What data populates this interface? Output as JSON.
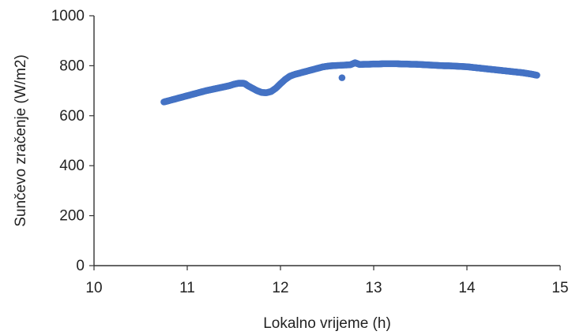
{
  "chart_data": {
    "type": "scatter",
    "title": "",
    "xlabel": "Lokalno vrijeme (h)",
    "ylabel": "Sunčevo zračenje (W/m2)",
    "xlim": [
      10,
      15
    ],
    "ylim": [
      0,
      1000
    ],
    "xticks": [
      "10",
      "11",
      "12",
      "13",
      "14",
      "15"
    ],
    "yticks": [
      "0",
      "200",
      "400",
      "600",
      "800",
      "1000"
    ],
    "grid": false,
    "legend": "none",
    "series": [
      {
        "color": "#4472C4",
        "points": [
          [
            10.75,
            655
          ],
          [
            10.8,
            660
          ],
          [
            10.85,
            665
          ],
          [
            10.9,
            670
          ],
          [
            10.95,
            675
          ],
          [
            11.0,
            680
          ],
          [
            11.05,
            685
          ],
          [
            11.1,
            690
          ],
          [
            11.15,
            695
          ],
          [
            11.2,
            700
          ],
          [
            11.25,
            704
          ],
          [
            11.3,
            708
          ],
          [
            11.35,
            712
          ],
          [
            11.4,
            716
          ],
          [
            11.45,
            720
          ],
          [
            11.5,
            726
          ],
          [
            11.55,
            730
          ],
          [
            11.6,
            730
          ],
          [
            11.62,
            728
          ],
          [
            11.65,
            720
          ],
          [
            11.7,
            710
          ],
          [
            11.75,
            700
          ],
          [
            11.8,
            693
          ],
          [
            11.85,
            692
          ],
          [
            11.9,
            697
          ],
          [
            11.95,
            710
          ],
          [
            12.0,
            728
          ],
          [
            12.05,
            745
          ],
          [
            12.1,
            758
          ],
          [
            12.15,
            765
          ],
          [
            12.2,
            770
          ],
          [
            12.25,
            775
          ],
          [
            12.3,
            780
          ],
          [
            12.35,
            785
          ],
          [
            12.4,
            790
          ],
          [
            12.45,
            795
          ],
          [
            12.5,
            798
          ],
          [
            12.55,
            800
          ],
          [
            12.6,
            801
          ],
          [
            12.65,
            802
          ],
          [
            12.66,
            752
          ],
          [
            12.7,
            803
          ],
          [
            12.75,
            804
          ],
          [
            12.8,
            812
          ],
          [
            12.85,
            805
          ],
          [
            12.9,
            806
          ],
          [
            12.95,
            806
          ],
          [
            13.0,
            807
          ],
          [
            13.05,
            807
          ],
          [
            13.1,
            808
          ],
          [
            13.15,
            808
          ],
          [
            13.2,
            808
          ],
          [
            13.25,
            808
          ],
          [
            13.3,
            807
          ],
          [
            13.35,
            807
          ],
          [
            13.4,
            806
          ],
          [
            13.45,
            806
          ],
          [
            13.5,
            805
          ],
          [
            13.55,
            804
          ],
          [
            13.6,
            803
          ],
          [
            13.65,
            802
          ],
          [
            13.7,
            801
          ],
          [
            13.75,
            800
          ],
          [
            13.8,
            800
          ],
          [
            13.85,
            799
          ],
          [
            13.9,
            798
          ],
          [
            13.95,
            797
          ],
          [
            14.0,
            796
          ],
          [
            14.05,
            794
          ],
          [
            14.1,
            792
          ],
          [
            14.15,
            790
          ],
          [
            14.2,
            788
          ],
          [
            14.25,
            786
          ],
          [
            14.3,
            784
          ],
          [
            14.35,
            782
          ],
          [
            14.4,
            780
          ],
          [
            14.45,
            778
          ],
          [
            14.5,
            776
          ],
          [
            14.55,
            774
          ],
          [
            14.6,
            772
          ],
          [
            14.65,
            769
          ],
          [
            14.7,
            766
          ],
          [
            14.75,
            762
          ]
        ]
      }
    ]
  }
}
